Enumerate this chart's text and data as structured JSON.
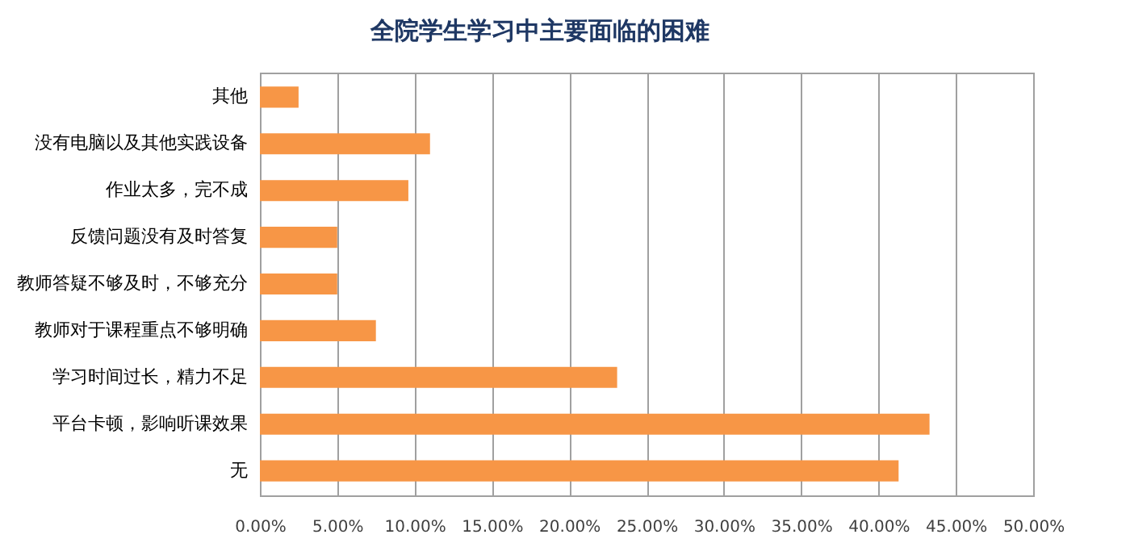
{
  "chart_data": {
    "type": "bar",
    "orientation": "horizontal",
    "title": "全院学生学习中主要面临的困难",
    "categories": [
      "其他",
      "没有电脑以及其他实践设备",
      "作业太多，完不成",
      "反馈问题没有及时答复",
      "教师答疑不够及时，不够充分",
      "教师对于课程重点不够明确",
      "学习时间过长，精力不足",
      "平台卡顿，影响听课效果",
      "无"
    ],
    "values": [
      2.5,
      11.0,
      9.6,
      5.0,
      5.0,
      7.5,
      23.1,
      43.3,
      41.3
    ],
    "color": "#f79646",
    "xlim": [
      0,
      50
    ],
    "xticks": [
      {
        "value": 0,
        "label": "0.00%"
      },
      {
        "value": 5,
        "label": "5.00%"
      },
      {
        "value": 10,
        "label": "10.00%"
      },
      {
        "value": 15,
        "label": "15.00%"
      },
      {
        "value": 20,
        "label": "20.00%"
      },
      {
        "value": 25,
        "label": "25.00%"
      },
      {
        "value": 30,
        "label": "30.00%"
      },
      {
        "value": 35,
        "label": "35.00%"
      },
      {
        "value": 40,
        "label": "40.00%"
      },
      {
        "value": 45,
        "label": "45.00%"
      },
      {
        "value": 50,
        "label": "50.00%"
      }
    ],
    "grid": "x"
  }
}
